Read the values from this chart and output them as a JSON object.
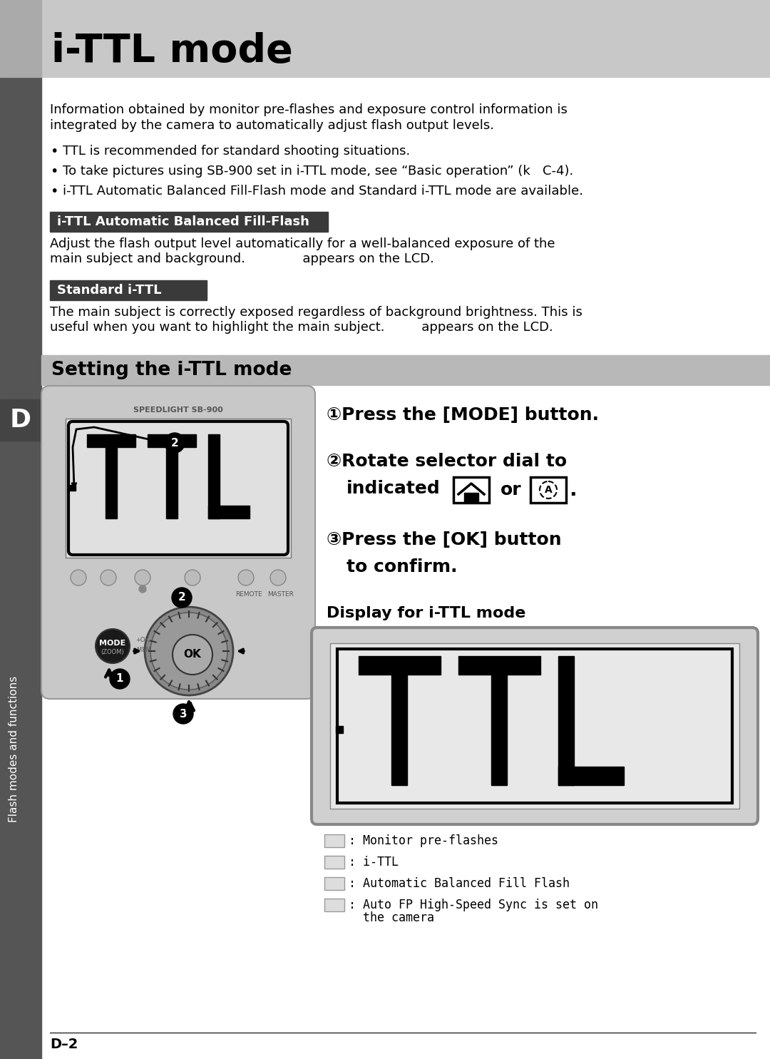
{
  "title": "i-TTL mode",
  "page_bg": "#ffffff",
  "header_bg": "#c8c8c8",
  "sidebar_bg": "#555555",
  "sidebar_letter": "D",
  "sidebar_text": "Flash modes and functions",
  "page_label": "D–2",
  "intro_line1": "Information obtained by monitor pre-flashes and exposure control information is",
  "intro_line2": "integrated by the camera to automatically adjust flash output levels.",
  "bullets": [
    "TTL is recommended for standard shooting situations.",
    "To take pictures using SB-900 set in i-TTL mode, see “Basic operation” (k   C-4).",
    "i-TTL Automatic Balanced Fill-Flash mode and Standard i-TTL mode are available."
  ],
  "sec1_label": "i-TTL Automatic Balanced Fill-Flash",
  "sec1_bg": "#3a3a3a",
  "sec1_line1": "Adjust the flash output level automatically for a well-balanced exposure of the",
  "sec1_line2": "main subject and background.              appears on the LCD.",
  "sec2_label": "Standard i-TTL",
  "sec2_bg": "#3a3a3a",
  "sec2_line1": "The main subject is correctly exposed regardless of background brightness. This is",
  "sec2_line2": "useful when you want to highlight the main subject.         appears on the LCD.",
  "setting_header": "Setting the i-TTL mode",
  "setting_header_bg": "#b8b8b8",
  "step1": "①Press the [MODE] button.",
  "step2a": "②Rotate selector dial to",
  "step2b": "indicated",
  "step2c": "or",
  "step3a": "③Press the [OK] button",
  "step3b": "to confirm.",
  "display_label": "Display for i-TTL mode",
  "legend": [
    ": Monitor pre-flashes",
    ": i-TTL",
    ": Automatic Balanced Fill Flash",
    ": Auto FP High-Speed Sync is set on\n  the camera"
  ],
  "cam_body_color": "#c8c8c8",
  "cam_screen_color": "#e0e0e0",
  "cam_dark": "#1a1a1a",
  "cam_mid": "#888888"
}
